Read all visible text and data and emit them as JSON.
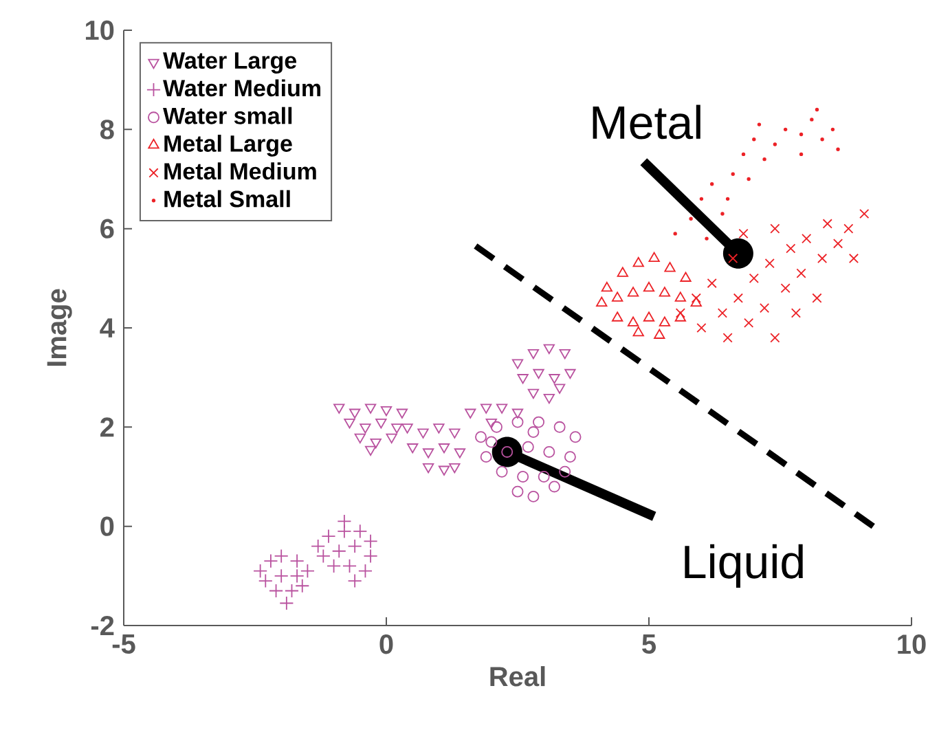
{
  "chart_data": {
    "type": "scatter",
    "xlabel": "Real",
    "ylabel": "Image",
    "xlim": [
      -5,
      10
    ],
    "xticks": [
      -5,
      0,
      5,
      10
    ],
    "ylim": [
      -2,
      10
    ],
    "yticks": [
      -2,
      0,
      2,
      4,
      6,
      8,
      10
    ],
    "grid": false,
    "legend": "top left",
    "series": [
      {
        "name": "Water Large",
        "color": "#b9529f",
        "marker": "triangle-down",
        "x": [
          -0.9,
          -0.6,
          -0.3,
          0,
          0.3,
          -0.7,
          -0.4,
          -0.1,
          0.2,
          -0.5,
          -0.2,
          0.1,
          -0.3,
          0.4,
          0.7,
          1.0,
          1.3,
          0.5,
          0.8,
          1.1,
          1.4,
          0.8,
          1.1,
          1.3,
          1.6,
          1.9,
          2.2,
          2.5,
          2.0,
          2.5,
          2.8,
          3.1,
          3.4,
          2.6,
          2.9,
          3.2,
          3.5,
          2.8,
          3.1,
          3.3
        ],
        "values": [
          2.4,
          2.3,
          2.4,
          2.35,
          2.3,
          2.1,
          2.0,
          2.1,
          2.0,
          1.8,
          1.7,
          1.8,
          1.55,
          2.0,
          1.9,
          2.0,
          1.9,
          1.6,
          1.5,
          1.6,
          1.5,
          1.2,
          1.15,
          1.2,
          2.3,
          2.4,
          2.4,
          2.3,
          2.1,
          3.3,
          3.5,
          3.6,
          3.5,
          3.0,
          3.1,
          3.0,
          3.1,
          2.7,
          2.6,
          2.8
        ]
      },
      {
        "name": "Water Medium",
        "color": "#b9529f",
        "marker": "plus",
        "x": [
          -2.4,
          -2.2,
          -2.0,
          -1.7,
          -2.3,
          -2.0,
          -1.7,
          -1.5,
          -2.1,
          -1.8,
          -1.9,
          -1.6,
          -1.3,
          -1.1,
          -0.8,
          -0.5,
          -0.3,
          -1.2,
          -0.9,
          -0.6,
          -0.3,
          -1.0,
          -0.7,
          -0.4,
          -0.8,
          -0.6
        ],
        "values": [
          -0.9,
          -0.7,
          -0.6,
          -0.7,
          -1.1,
          -1.0,
          -1.0,
          -0.9,
          -1.3,
          -1.3,
          -1.55,
          -1.2,
          -0.4,
          -0.2,
          -0.1,
          -0.1,
          -0.3,
          -0.6,
          -0.5,
          -0.4,
          -0.6,
          -0.8,
          -0.8,
          -0.9,
          0.1,
          -1.1
        ]
      },
      {
        "name": "Water small",
        "color": "#b9529f",
        "marker": "circle",
        "x": [
          1.8,
          2.1,
          2.5,
          2.9,
          3.3,
          3.6,
          1.9,
          2.3,
          2.7,
          3.1,
          3.5,
          2.2,
          2.6,
          3.0,
          3.4,
          2.5,
          2.8,
          3.2,
          2.0,
          2.8
        ],
        "values": [
          1.8,
          2.0,
          2.1,
          2.1,
          2.0,
          1.8,
          1.4,
          1.5,
          1.6,
          1.5,
          1.4,
          1.1,
          1.0,
          1.0,
          1.1,
          0.7,
          0.6,
          0.8,
          1.7,
          1.9
        ]
      },
      {
        "name": "Metal Large",
        "color": "#ec2227",
        "marker": "triangle",
        "x": [
          4.2,
          4.5,
          4.8,
          5.1,
          5.4,
          5.7,
          4.1,
          4.4,
          4.7,
          5.0,
          5.3,
          5.6,
          5.9,
          4.4,
          4.7,
          5.0,
          5.3,
          5.6,
          4.8,
          5.2
        ],
        "values": [
          4.8,
          5.1,
          5.3,
          5.4,
          5.2,
          5.0,
          4.5,
          4.6,
          4.7,
          4.8,
          4.7,
          4.6,
          4.5,
          4.2,
          4.1,
          4.2,
          4.1,
          4.2,
          3.9,
          3.85
        ]
      },
      {
        "name": "Metal Medium",
        "color": "#ec2227",
        "marker": "cross",
        "x": [
          5.6,
          5.9,
          6.2,
          6.0,
          6.4,
          6.7,
          6.5,
          6.9,
          7.2,
          7.0,
          7.3,
          6.6,
          7.6,
          7.9,
          7.7,
          8.0,
          8.3,
          8.6,
          8.4,
          8.8,
          9.1,
          8.9,
          7.4,
          7.8,
          8.2,
          7.4,
          6.8
        ],
        "values": [
          4.3,
          4.6,
          4.9,
          4.0,
          4.3,
          4.6,
          3.8,
          4.1,
          4.4,
          5.0,
          5.3,
          5.4,
          4.8,
          5.1,
          5.6,
          5.8,
          5.4,
          5.7,
          6.1,
          6.0,
          6.3,
          5.4,
          3.8,
          4.3,
          4.6,
          6.0,
          5.9
        ]
      },
      {
        "name": "Metal Small",
        "color": "#ec2227",
        "marker": "point",
        "x": [
          5.5,
          5.8,
          6.0,
          6.2,
          6.4,
          6.6,
          6.8,
          7.0,
          7.2,
          7.4,
          6.9,
          7.1,
          7.6,
          7.9,
          8.1,
          8.3,
          8.5,
          8.2,
          7.9,
          8.6,
          6.1,
          6.5
        ],
        "values": [
          5.9,
          6.2,
          6.6,
          6.9,
          6.3,
          7.1,
          7.5,
          7.8,
          7.4,
          7.7,
          7.0,
          8.1,
          8.0,
          7.9,
          8.2,
          7.8,
          8.0,
          8.4,
          7.5,
          7.6,
          5.8,
          6.6
        ]
      },
      {
        "type": "line",
        "color": "#000000",
        "line_style": "dashed",
        "marker": "none",
        "x": [
          1.7,
          9.27
        ],
        "values": [
          5.65,
          0
        ]
      }
    ],
    "annotations": [
      {
        "text": "Metal",
        "x": 6.7,
        "y": 5.5
      },
      {
        "text": "Liquid",
        "x": 2.3,
        "y": 1.5
      }
    ]
  }
}
